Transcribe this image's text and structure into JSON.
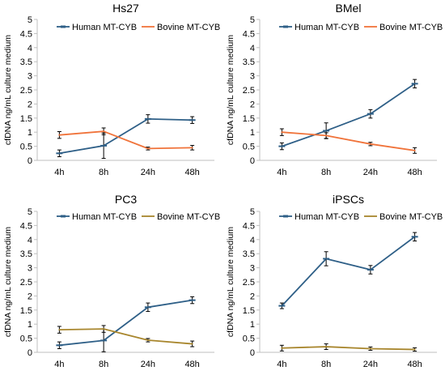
{
  "colors": {
    "human": "#2e5f87",
    "bovine_orange": "#f0733a",
    "bovine_olive": "#a8862d",
    "axis": "#bfbfbf",
    "errorbar": "#000000"
  },
  "chart_data": [
    {
      "type": "line",
      "title": "Hs27",
      "ylabel": "cfDNA ng/mL culture medium",
      "categories": [
        "4h",
        "8h",
        "24h",
        "48h"
      ],
      "ylim": [
        0,
        5
      ],
      "yticks": [
        "0",
        "0.5",
        "1",
        "1.5",
        "2",
        "2.5",
        "3",
        "3.5",
        "4",
        "4.5",
        "5"
      ],
      "legend_position": "top",
      "series": [
        {
          "name": "Human MT-CYB",
          "color": "#2e5f87",
          "marker": "dash",
          "values": [
            0.25,
            0.52,
            1.47,
            1.43
          ],
          "errors": [
            0.12,
            0.45,
            0.15,
            0.12
          ]
        },
        {
          "name": "Bovine MT-CYB",
          "color": "#f0733a",
          "marker": "none",
          "values": [
            0.9,
            1.03,
            0.42,
            0.45
          ],
          "errors": [
            0.12,
            0.12,
            0.05,
            0.08
          ]
        }
      ]
    },
    {
      "type": "line",
      "title": "BMel",
      "ylabel": "cfDNA ng/mL culture medium",
      "categories": [
        "4h",
        "8h",
        "24h",
        "48h"
      ],
      "ylim": [
        0,
        5
      ],
      "yticks": [
        "0",
        "0.5",
        "1",
        "1.5",
        "2",
        "2.5",
        "3",
        "3.5",
        "4",
        "4.5",
        "5"
      ],
      "legend_position": "top",
      "series": [
        {
          "name": "Human MT-CYB",
          "color": "#2e5f87",
          "marker": "dash",
          "values": [
            0.5,
            1.05,
            1.65,
            2.72
          ],
          "errors": [
            0.12,
            0.28,
            0.15,
            0.15
          ]
        },
        {
          "name": "Bovine MT-CYB",
          "color": "#f0733a",
          "marker": "none",
          "values": [
            1.0,
            0.88,
            0.58,
            0.35
          ],
          "errors": [
            0.12,
            0.1,
            0.06,
            0.1
          ]
        }
      ]
    },
    {
      "type": "line",
      "title": "PC3",
      "ylabel": "cfDNA ng/mL culture medium",
      "categories": [
        "4h",
        "8h",
        "24h",
        "48h"
      ],
      "ylim": [
        0,
        5
      ],
      "yticks": [
        "0",
        "0.5",
        "1",
        "1.5",
        "2",
        "2.5",
        "3",
        "3.5",
        "4",
        "4.5",
        "5"
      ],
      "legend_position": "top",
      "series": [
        {
          "name": "Human MT-CYB",
          "color": "#2e5f87",
          "marker": "dash",
          "values": [
            0.25,
            0.42,
            1.6,
            1.85
          ],
          "errors": [
            0.12,
            0.4,
            0.15,
            0.12
          ]
        },
        {
          "name": "Bovine MT-CYB",
          "color": "#a8862d",
          "marker": "none",
          "values": [
            0.8,
            0.83,
            0.43,
            0.3
          ],
          "errors": [
            0.12,
            0.12,
            0.06,
            0.1
          ]
        }
      ]
    },
    {
      "type": "line",
      "title": "iPSCs",
      "ylabel": "cfDNA ng/mL culture medium",
      "categories": [
        "4h",
        "8h",
        "24h",
        "48h"
      ],
      "ylim": [
        0,
        5
      ],
      "yticks": [
        "0",
        "0.5",
        "1",
        "1.5",
        "2",
        "2.5",
        "3",
        "3.5",
        "4",
        "4.5",
        "5"
      ],
      "legend_position": "top",
      "series": [
        {
          "name": "Human MT-CYB",
          "color": "#2e5f87",
          "marker": "dash",
          "values": [
            1.65,
            3.32,
            2.93,
            4.1
          ],
          "errors": [
            0.1,
            0.25,
            0.15,
            0.15
          ]
        },
        {
          "name": "Bovine MT-CYB",
          "color": "#a8862d",
          "marker": "none",
          "values": [
            0.15,
            0.2,
            0.13,
            0.1
          ],
          "errors": [
            0.1,
            0.1,
            0.06,
            0.06
          ]
        }
      ]
    }
  ]
}
